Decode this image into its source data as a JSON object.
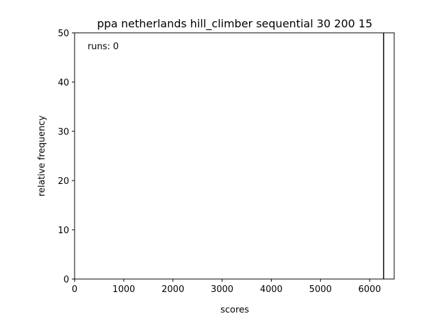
{
  "chart_data": {
    "type": "bar",
    "title": "ppa netherlands hill_climber sequential 30 200 15",
    "xlabel": "scores",
    "ylabel": "relative frequency",
    "annotation": "runs: 0",
    "xlim": [
      0,
      6500
    ],
    "ylim": [
      0,
      50
    ],
    "xticks": [
      0,
      1000,
      2000,
      3000,
      4000,
      5000,
      6000
    ],
    "yticks": [
      0,
      10,
      20,
      30,
      40,
      50
    ],
    "bars": [
      {
        "x": 6285,
        "value": 50
      }
    ],
    "grid": false,
    "colors": {
      "bar": "#000000",
      "axes": "#000000",
      "background": "#ffffff"
    }
  }
}
